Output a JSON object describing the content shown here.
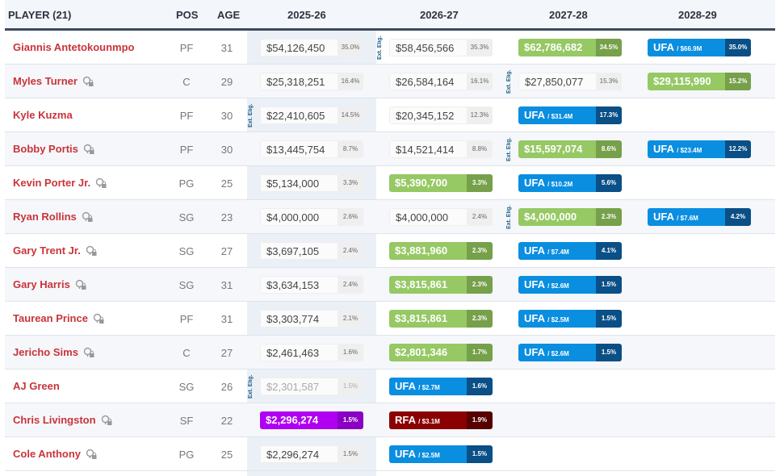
{
  "header": {
    "player": "PLAYER (21)",
    "pos": "POS",
    "age": "AGE",
    "seasons": [
      "2025-26",
      "2026-27",
      "2027-28",
      "2028-29"
    ]
  },
  "ext_label": "Ext. Elig.",
  "colors": {
    "green": "#96c864",
    "ufa": "#0a8ee0",
    "rfa": "#8b0000",
    "purple": "#b000f2",
    "name": "#c8343a"
  },
  "players": [
    {
      "name": "Giannis Antetokounmpo",
      "lock": false,
      "pos": "PF",
      "age": "31",
      "ext": 1,
      "cells": [
        {
          "t": "plain",
          "amt": "$54,126,450",
          "pct": "35.0%"
        },
        {
          "t": "plain",
          "amt": "$58,456,566",
          "pct": "35.3%"
        },
        {
          "t": "green",
          "amt": "$62,786,682",
          "pct": "34.5%"
        },
        {
          "t": "ufa",
          "amt": "UFA",
          "sub": "/ $66.9M",
          "pct": "35.0%"
        }
      ]
    },
    {
      "name": "Myles Turner",
      "lock": true,
      "pos": "C",
      "age": "29",
      "ext": 2,
      "cells": [
        {
          "t": "plain",
          "amt": "$25,318,251",
          "pct": "16.4%"
        },
        {
          "t": "plain",
          "amt": "$26,584,164",
          "pct": "16.1%"
        },
        {
          "t": "plain",
          "amt": "$27,850,077",
          "pct": "15.3%"
        },
        {
          "t": "green",
          "amt": "$29,115,990",
          "pct": "15.2%"
        }
      ]
    },
    {
      "name": "Kyle Kuzma",
      "lock": false,
      "pos": "PF",
      "age": "30",
      "ext": 0,
      "cells": [
        {
          "t": "plain",
          "amt": "$22,410,605",
          "pct": "14.5%"
        },
        {
          "t": "plain",
          "amt": "$20,345,152",
          "pct": "12.3%"
        },
        {
          "t": "ufa",
          "amt": "UFA",
          "sub": "/ $31.4M",
          "pct": "17.3%"
        }
      ]
    },
    {
      "name": "Bobby Portis",
      "lock": true,
      "pos": "PF",
      "age": "30",
      "ext": 2,
      "cells": [
        {
          "t": "plain",
          "amt": "$13,445,754",
          "pct": "8.7%"
        },
        {
          "t": "plain",
          "amt": "$14,521,414",
          "pct": "8.8%"
        },
        {
          "t": "green",
          "amt": "$15,597,074",
          "pct": "8.6%"
        },
        {
          "t": "ufa",
          "amt": "UFA",
          "sub": "/ $23.4M",
          "pct": "12.2%"
        }
      ]
    },
    {
      "name": "Kevin Porter Jr.",
      "lock": true,
      "pos": "PG",
      "age": "25",
      "ext": null,
      "cells": [
        {
          "t": "plain",
          "amt": "$5,134,000",
          "pct": "3.3%"
        },
        {
          "t": "green",
          "amt": "$5,390,700",
          "pct": "3.3%"
        },
        {
          "t": "ufa",
          "amt": "UFA",
          "sub": "/ $10.2M",
          "pct": "5.6%"
        }
      ]
    },
    {
      "name": "Ryan Rollins",
      "lock": true,
      "pos": "SG",
      "age": "23",
      "ext": 2,
      "cells": [
        {
          "t": "plain",
          "amt": "$4,000,000",
          "pct": "2.6%"
        },
        {
          "t": "plain",
          "amt": "$4,000,000",
          "pct": "2.4%"
        },
        {
          "t": "green",
          "amt": "$4,000,000",
          "pct": "2.3%"
        },
        {
          "t": "ufa",
          "amt": "UFA",
          "sub": "/ $7.6M",
          "pct": "4.2%"
        }
      ]
    },
    {
      "name": "Gary Trent Jr.",
      "lock": true,
      "pos": "SG",
      "age": "27",
      "ext": null,
      "cells": [
        {
          "t": "plain",
          "amt": "$3,697,105",
          "pct": "2.4%"
        },
        {
          "t": "green",
          "amt": "$3,881,960",
          "pct": "2.3%"
        },
        {
          "t": "ufa",
          "amt": "UFA",
          "sub": "/ $7.4M",
          "pct": "4.1%"
        }
      ]
    },
    {
      "name": "Gary Harris",
      "lock": true,
      "pos": "SG",
      "age": "31",
      "ext": null,
      "cells": [
        {
          "t": "plain",
          "amt": "$3,634,153",
          "pct": "2.4%"
        },
        {
          "t": "green",
          "amt": "$3,815,861",
          "pct": "2.3%"
        },
        {
          "t": "ufa",
          "amt": "UFA",
          "sub": "/ $2.6M",
          "pct": "1.5%"
        }
      ]
    },
    {
      "name": "Taurean Prince",
      "lock": true,
      "pos": "PF",
      "age": "31",
      "ext": null,
      "cells": [
        {
          "t": "plain",
          "amt": "$3,303,774",
          "pct": "2.1%"
        },
        {
          "t": "green",
          "amt": "$3,815,861",
          "pct": "2.3%"
        },
        {
          "t": "ufa",
          "amt": "UFA",
          "sub": "/ $2.5M",
          "pct": "1.5%"
        }
      ]
    },
    {
      "name": "Jericho Sims",
      "lock": true,
      "pos": "C",
      "age": "27",
      "ext": null,
      "cells": [
        {
          "t": "plain",
          "amt": "$2,461,463",
          "pct": "1.6%"
        },
        {
          "t": "green",
          "amt": "$2,801,346",
          "pct": "1.7%"
        },
        {
          "t": "ufa",
          "amt": "UFA",
          "sub": "/ $2.6M",
          "pct": "1.5%"
        }
      ]
    },
    {
      "name": "AJ Green",
      "lock": false,
      "pos": "SG",
      "age": "26",
      "ext": 0,
      "cells": [
        {
          "t": "faded",
          "amt": "$2,301,587",
          "pct": "1.5%"
        },
        {
          "t": "ufa",
          "amt": "UFA",
          "sub": "/ $2.7M",
          "pct": "1.6%"
        }
      ]
    },
    {
      "name": "Chris Livingston",
      "lock": true,
      "pos": "SF",
      "age": "22",
      "ext": null,
      "cells": [
        {
          "t": "purple",
          "amt": "$2,296,274",
          "pct": "1.5%"
        },
        {
          "t": "rfa",
          "amt": "RFA",
          "sub": "/ $3.1M",
          "pct": "1.9%"
        }
      ]
    },
    {
      "name": "Cole Anthony",
      "lock": true,
      "pos": "PG",
      "age": "25",
      "ext": null,
      "cells": [
        {
          "t": "plain",
          "amt": "$2,296,274",
          "pct": "1.5%"
        },
        {
          "t": "ufa",
          "amt": "UFA",
          "sub": "/ $2.5M",
          "pct": "1.5%"
        }
      ]
    }
  ]
}
